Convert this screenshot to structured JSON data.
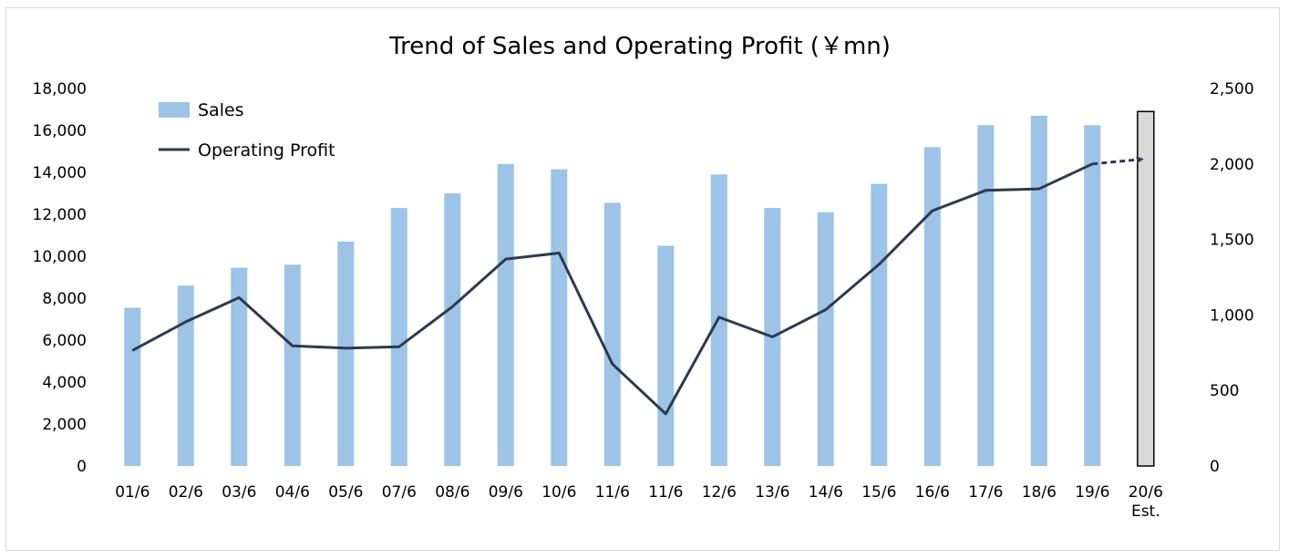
{
  "chart_data": {
    "type": "bar",
    "title": "Trend of Sales and Operating Profit (￥mn)",
    "categories": [
      "01/6",
      "02/6",
      "03/6",
      "04/6",
      "05/6",
      "07/6",
      "08/6",
      "09/6",
      "10/6",
      "11/6",
      "11/6",
      "12/6",
      "13/6",
      "14/6",
      "15/6",
      "16/6",
      "17/6",
      "18/6",
      "19/6",
      "20/6"
    ],
    "category_sublabels": [
      "",
      "",
      "",
      "",
      "",
      "",
      "",
      "",
      "",
      "",
      "",
      "",
      "",
      "",
      "",
      "",
      "",
      "",
      "",
      "Est."
    ],
    "series": [
      {
        "name": "Sales",
        "axis": "left",
        "chart_type": "bar",
        "color": "#9dc3e6",
        "values": [
          7550,
          8600,
          9450,
          9600,
          10700,
          12300,
          13000,
          14400,
          14150,
          12550,
          10500,
          13900,
          12300,
          12100,
          13450,
          15200,
          16250,
          16700,
          16250,
          16900
        ],
        "estimate_flags": [
          false,
          false,
          false,
          false,
          false,
          false,
          false,
          false,
          false,
          false,
          false,
          false,
          false,
          false,
          false,
          false,
          false,
          false,
          false,
          true
        ],
        "estimate_color": "#d9d9d9"
      },
      {
        "name": "Operating Profit",
        "axis": "right",
        "chart_type": "line",
        "color": "#2e3a4d",
        "values": [
          765,
          955,
          1115,
          795,
          780,
          790,
          1055,
          1370,
          1410,
          675,
          345,
          985,
          855,
          1035,
          1335,
          1690,
          1825,
          1835,
          2000,
          2030
        ],
        "estimate_from_index": 18
      }
    ],
    "y_left": {
      "min": 0,
      "max": 18000,
      "ticks": [
        "0",
        "2,000",
        "4,000",
        "6,000",
        "8,000",
        "10,000",
        "12,000",
        "14,000",
        "16,000",
        "18,000"
      ]
    },
    "y_right": {
      "min": 0,
      "max": 2500,
      "ticks": [
        "0",
        "500",
        "1,000",
        "1,500",
        "2,000",
        "2,500"
      ]
    },
    "legend": {
      "position": "top-left",
      "entries": [
        "Sales",
        "Operating Profit"
      ]
    },
    "grid": false
  }
}
